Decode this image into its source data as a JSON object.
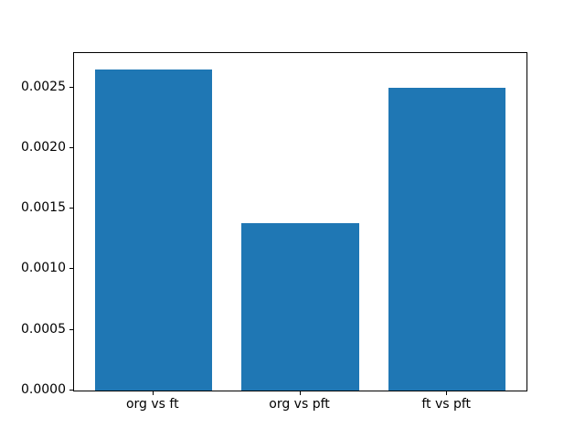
{
  "figure": {
    "background_color": "#ffffff",
    "frame_color": "#000000",
    "text_color": "#000000"
  },
  "chart_data": {
    "type": "bar",
    "title": "",
    "xlabel": "",
    "ylabel": "",
    "categories": [
      "org vs ft",
      "org vs pft",
      "ft vs pft"
    ],
    "values": [
      0.00265,
      0.00138,
      0.0025
    ],
    "bar_color": "#1f77b4",
    "bar_width": 0.8,
    "x_positions": [
      0,
      1,
      2
    ],
    "xlim": [
      -0.54,
      2.54
    ],
    "ylim": [
      0,
      0.0027825
    ],
    "y_ticks": [
      0.0,
      0.0005,
      0.001,
      0.0015,
      0.002,
      0.0025
    ],
    "y_tick_labels": [
      "0.0000",
      "0.0005",
      "0.0010",
      "0.0015",
      "0.0020",
      "0.0025"
    ],
    "grid": false,
    "legend": null
  }
}
